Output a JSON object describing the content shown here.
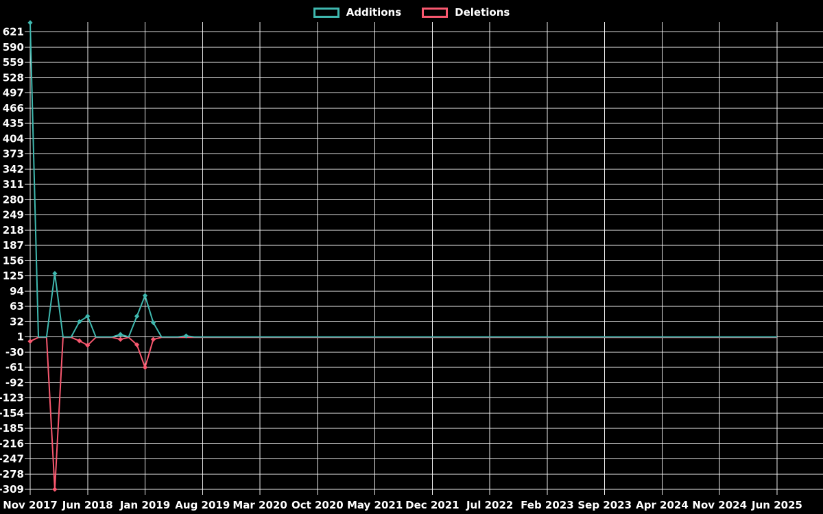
{
  "page": {
    "background": "#000000",
    "grid_color": "#ffffff",
    "text_color": "#ffffff"
  },
  "chart_data": {
    "type": "line",
    "title": "",
    "legend_position": "top-center",
    "grid": true,
    "x_axis": {
      "unit": "month",
      "start": "Nov 2017",
      "end": "Jun 2025",
      "total_months": 92,
      "tick_every_months": 7,
      "tick_labels": [
        "Nov 2017",
        "Jun 2018",
        "Jan 2019",
        "Aug 2019",
        "Mar 2020",
        "Oct 2020",
        "May 2021",
        "Dec 2021",
        "Jul 2022",
        "Feb 2023",
        "Sep 2023",
        "Apr 2024",
        "Nov 2024",
        "Jun 2025"
      ]
    },
    "y_axis": {
      "step": 31,
      "ylim": [
        -309,
        641
      ],
      "tick_labels": [
        621,
        590,
        559,
        528,
        497,
        466,
        435,
        404,
        373,
        342,
        311,
        280,
        249,
        218,
        187,
        156,
        125,
        94,
        63,
        32,
        1,
        -30,
        -61,
        -92,
        -123,
        -154,
        -185,
        -216,
        -247,
        -278,
        -309
      ]
    },
    "baseline": {
      "additions": 1,
      "deletions": 0
    },
    "series": [
      {
        "name": "Additions",
        "color": "#3fb8af",
        "points": [
          {
            "m": 0,
            "month": "Nov 2017",
            "value": 640
          },
          {
            "m": 3,
            "month": "Feb 2018",
            "value": 130
          },
          {
            "m": 6,
            "month": "May 2018",
            "value": 32
          },
          {
            "m": 7,
            "month": "Jun 2018",
            "value": 43
          },
          {
            "m": 11,
            "month": "Oct 2018",
            "value": 6
          },
          {
            "m": 13,
            "month": "Dec 2018",
            "value": 43
          },
          {
            "m": 14,
            "month": "Jan 2019",
            "value": 85
          },
          {
            "m": 15,
            "month": "Feb 2019",
            "value": 30
          },
          {
            "m": 19,
            "month": "Jun 2019",
            "value": 3
          }
        ]
      },
      {
        "name": "Deletions",
        "color": "#f8586f",
        "points": [
          {
            "m": 0,
            "month": "Nov 2017",
            "value": -8
          },
          {
            "m": 3,
            "month": "Feb 2018",
            "value": -309
          },
          {
            "m": 6,
            "month": "May 2018",
            "value": -7
          },
          {
            "m": 7,
            "month": "Jun 2018",
            "value": -16
          },
          {
            "m": 11,
            "month": "Oct 2018",
            "value": -4
          },
          {
            "m": 13,
            "month": "Dec 2018",
            "value": -15
          },
          {
            "m": 14,
            "month": "Jan 2019",
            "value": -61
          },
          {
            "m": 15,
            "month": "Feb 2019",
            "value": -4
          }
        ]
      }
    ]
  }
}
